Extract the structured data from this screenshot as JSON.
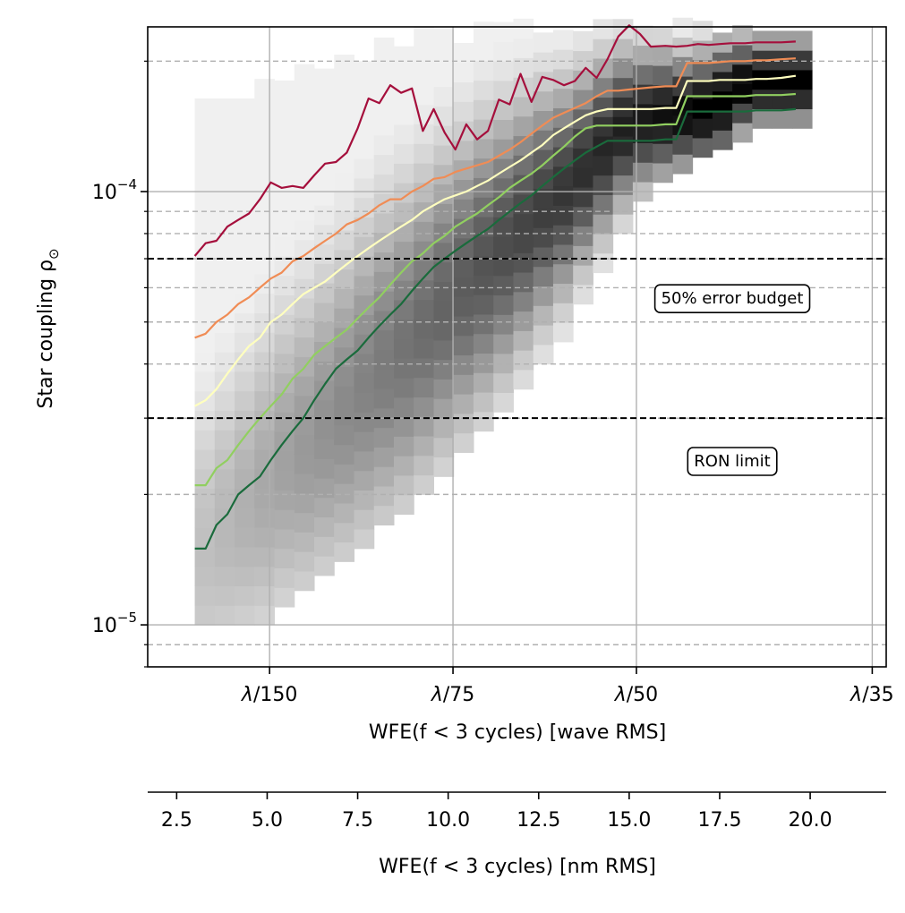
{
  "chart_data": {
    "type": "line",
    "ylabel": "Star coupling ρ",
    "ylabel_subscript": "⊙",
    "yscale": "log",
    "ylim": [
      8e-06,
      0.00024
    ],
    "y_tick_labels": [
      {
        "value": 0.0001,
        "base": "10",
        "exp": "−4"
      },
      {
        "value": 1e-05,
        "base": "10",
        "exp": "−5"
      }
    ],
    "minor_lines": [
      9e-06,
      2e-05,
      3e-05,
      4e-05,
      5e-05,
      6e-05,
      7e-05,
      8e-05,
      9e-05,
      0.0002
    ],
    "xlabel_top": "WFE(f < 3 cycles) [wave RMS]",
    "x_wave_ticks": [
      {
        "label_prefix": "λ",
        "label_suffix": "/150",
        "denominator": 150
      },
      {
        "label_prefix": "λ",
        "label_suffix": "/75",
        "denominator": 75
      },
      {
        "label_prefix": "λ",
        "label_suffix": "/50",
        "denominator": 50
      },
      {
        "label_prefix": "λ",
        "label_suffix": "/35",
        "denominator": 35
      }
    ],
    "xlabel_bottom": "WFE(f < 3 cycles) [nm RMS]",
    "x_nm_ticks": [
      "2.5",
      "5.0",
      "7.5",
      "10.0",
      "12.5",
      "15.0",
      "17.5",
      "20.0"
    ],
    "xlim_nm": [
      1.7,
      22.1
    ],
    "reference_lines": [
      {
        "value": 7e-05,
        "label": "50% error budget",
        "label_y": 5.7e-05
      },
      {
        "value": 3e-05,
        "label": "RON limit",
        "label_y": 2.4e-05
      }
    ],
    "series": [
      {
        "color": "#a50f3c",
        "x": [
          3.0,
          3.3,
          3.6,
          3.9,
          4.2,
          4.5,
          4.8,
          5.1,
          5.4,
          5.7,
          6.0,
          6.3,
          6.6,
          6.9,
          7.2,
          7.5,
          7.8,
          8.1,
          8.4,
          8.7,
          9.0,
          9.3,
          9.6,
          9.9,
          10.2,
          10.5,
          10.8,
          11.1,
          11.4,
          11.7,
          12.0,
          12.3,
          12.6,
          12.9,
          13.2,
          13.5,
          13.8,
          14.1,
          14.4,
          14.7,
          15.0,
          15.3,
          15.6,
          16.0,
          16.3,
          16.6,
          16.9,
          17.2,
          17.5,
          17.8,
          18.2,
          18.5,
          18.8,
          19.2,
          19.6
        ],
        "y": [
          7.1e-05,
          7.6e-05,
          7.7e-05,
          8.3e-05,
          8.6e-05,
          8.9e-05,
          9.6e-05,
          0.000105,
          0.000102,
          0.000103,
          0.000102,
          0.000109,
          0.000116,
          0.000117,
          0.000123,
          0.00014,
          0.000164,
          0.00016,
          0.000176,
          0.000169,
          0.000173,
          0.000138,
          0.000155,
          0.000137,
          0.000125,
          0.000143,
          0.000132,
          0.000138,
          0.000163,
          0.000159,
          0.000187,
          0.000161,
          0.000184,
          0.000181,
          0.000176,
          0.00018,
          0.000193,
          0.000183,
          0.000202,
          0.000228,
          0.000242,
          0.000231,
          0.000216,
          0.000217,
          0.000216,
          0.000217,
          0.000219,
          0.000218,
          0.000219,
          0.00022,
          0.00022,
          0.000221,
          0.000221,
          0.000221,
          0.000222
        ]
      },
      {
        "color": "#f08c55",
        "x": [
          3.0,
          3.3,
          3.6,
          3.9,
          4.2,
          4.5,
          4.8,
          5.1,
          5.4,
          5.7,
          6.0,
          6.3,
          6.6,
          6.9,
          7.2,
          7.5,
          7.8,
          8.1,
          8.4,
          8.7,
          9.0,
          9.3,
          9.6,
          9.9,
          10.2,
          10.5,
          10.8,
          11.1,
          11.4,
          11.7,
          12.0,
          12.3,
          12.6,
          12.9,
          13.2,
          13.5,
          13.8,
          14.1,
          14.4,
          14.7,
          15.0,
          15.3,
          15.6,
          16.0,
          16.3,
          16.6,
          16.9,
          17.2,
          17.5,
          17.8,
          18.2,
          18.5,
          18.8,
          19.2,
          19.6
        ],
        "y": [
          4.6e-05,
          4.7e-05,
          5e-05,
          5.2e-05,
          5.5e-05,
          5.7e-05,
          6e-05,
          6.3e-05,
          6.5e-05,
          6.9e-05,
          7.1e-05,
          7.4e-05,
          7.7e-05,
          8e-05,
          8.4e-05,
          8.6e-05,
          8.9e-05,
          9.3e-05,
          9.6e-05,
          9.6e-05,
          0.0001,
          0.000103,
          0.000107,
          0.000108,
          0.000111,
          0.000113,
          0.000115,
          0.000117,
          0.000121,
          0.000125,
          0.00013,
          0.000136,
          0.000142,
          0.000148,
          0.000152,
          0.000156,
          0.00016,
          0.000166,
          0.000171,
          0.000171,
          0.000172,
          0.000173,
          0.000174,
          0.000175,
          0.000175,
          0.000198,
          0.000198,
          0.000198,
          0.000199,
          0.0002,
          0.0002,
          0.000201,
          0.000201,
          0.000202,
          0.000203
        ]
      },
      {
        "color": "#ffffbf",
        "x": [
          3.0,
          3.3,
          3.6,
          3.9,
          4.2,
          4.5,
          4.8,
          5.1,
          5.4,
          5.7,
          6.0,
          6.3,
          6.6,
          6.9,
          7.2,
          7.5,
          7.8,
          8.1,
          8.4,
          8.7,
          9.0,
          9.3,
          9.6,
          9.9,
          10.2,
          10.5,
          10.8,
          11.1,
          11.4,
          11.7,
          12.0,
          12.3,
          12.6,
          12.9,
          13.2,
          13.5,
          13.8,
          14.1,
          14.4,
          14.7,
          15.0,
          15.3,
          15.6,
          16.0,
          16.3,
          16.6,
          16.9,
          17.2,
          17.5,
          17.8,
          18.2,
          18.5,
          18.8,
          19.2,
          19.6
        ],
        "y": [
          3.2e-05,
          3.3e-05,
          3.5e-05,
          3.8e-05,
          4.1e-05,
          4.4e-05,
          4.6e-05,
          5e-05,
          5.2e-05,
          5.5e-05,
          5.8e-05,
          6e-05,
          6.2e-05,
          6.5e-05,
          6.8e-05,
          7.1e-05,
          7.4e-05,
          7.7e-05,
          8e-05,
          8.3e-05,
          8.6e-05,
          9e-05,
          9.3e-05,
          9.6e-05,
          9.8e-05,
          0.0001,
          0.000103,
          0.000106,
          0.00011,
          0.000114,
          0.000118,
          0.000123,
          0.000128,
          0.000135,
          0.00014,
          0.000145,
          0.00015,
          0.000153,
          0.000155,
          0.000155,
          0.000155,
          0.000155,
          0.000155,
          0.000156,
          0.000156,
          0.00018,
          0.00018,
          0.00018,
          0.000181,
          0.000181,
          0.000181,
          0.000182,
          0.000182,
          0.000183,
          0.000185
        ]
      },
      {
        "color": "#91cf60",
        "x": [
          3.0,
          3.3,
          3.6,
          3.9,
          4.2,
          4.5,
          4.8,
          5.1,
          5.4,
          5.7,
          6.0,
          6.3,
          6.6,
          6.9,
          7.2,
          7.5,
          7.8,
          8.1,
          8.4,
          8.7,
          9.0,
          9.3,
          9.6,
          9.9,
          10.2,
          10.5,
          10.8,
          11.1,
          11.4,
          11.7,
          12.0,
          12.3,
          12.6,
          12.9,
          13.2,
          13.5,
          13.8,
          14.1,
          14.4,
          14.7,
          15.0,
          15.3,
          15.6,
          16.0,
          16.3,
          16.6,
          16.9,
          17.2,
          17.5,
          17.8,
          18.2,
          18.5,
          18.8,
          19.2,
          19.6
        ],
        "y": [
          2.1e-05,
          2.1e-05,
          2.3e-05,
          2.4e-05,
          2.6e-05,
          2.8e-05,
          3e-05,
          3.2e-05,
          3.4e-05,
          3.7e-05,
          3.9e-05,
          4.2e-05,
          4.4e-05,
          4.6e-05,
          4.8e-05,
          5.1e-05,
          5.4e-05,
          5.7e-05,
          6.1e-05,
          6.5e-05,
          6.9e-05,
          7.2e-05,
          7.6e-05,
          7.9e-05,
          8.3e-05,
          8.6e-05,
          8.9e-05,
          9.3e-05,
          9.7e-05,
          0.000102,
          0.000106,
          0.00011,
          0.000115,
          0.000121,
          0.000127,
          0.000134,
          0.00014,
          0.000142,
          0.000142,
          0.000142,
          0.000142,
          0.000142,
          0.000142,
          0.000143,
          0.000143,
          0.000166,
          0.000166,
          0.000166,
          0.000166,
          0.000166,
          0.000166,
          0.000167,
          0.000167,
          0.000167,
          0.000168
        ]
      },
      {
        "color": "#1a6b3c",
        "x": [
          3.0,
          3.3,
          3.6,
          3.9,
          4.2,
          4.5,
          4.8,
          5.1,
          5.4,
          5.7,
          6.0,
          6.3,
          6.6,
          6.9,
          7.2,
          7.5,
          7.8,
          8.1,
          8.4,
          8.7,
          9.0,
          9.3,
          9.6,
          9.9,
          10.2,
          10.5,
          10.8,
          11.1,
          11.4,
          11.7,
          12.0,
          12.3,
          12.6,
          12.9,
          13.2,
          13.5,
          13.8,
          14.1,
          14.4,
          14.7,
          15.0,
          15.3,
          15.6,
          16.0,
          16.3,
          16.6,
          16.9,
          17.2,
          17.5,
          17.8,
          18.2,
          18.5,
          18.8,
          19.2,
          19.6
        ],
        "y": [
          1.5e-05,
          1.5e-05,
          1.7e-05,
          1.8e-05,
          2e-05,
          2.1e-05,
          2.2e-05,
          2.4e-05,
          2.6e-05,
          2.8e-05,
          3e-05,
          3.3e-05,
          3.6e-05,
          3.9e-05,
          4.1e-05,
          4.3e-05,
          4.6e-05,
          4.9e-05,
          5.2e-05,
          5.5e-05,
          5.9e-05,
          6.3e-05,
          6.7e-05,
          7e-05,
          7.3e-05,
          7.6e-05,
          7.9e-05,
          8.2e-05,
          8.6e-05,
          9e-05,
          9.4e-05,
          9.8e-05,
          0.000103,
          0.000108,
          0.000113,
          0.000118,
          0.000123,
          0.000127,
          0.000131,
          0.000131,
          0.000131,
          0.000131,
          0.000131,
          0.000132,
          0.000132,
          0.000153,
          0.000153,
          0.000153,
          0.000153,
          0.000153,
          0.000153,
          0.000154,
          0.000154,
          0.000154,
          0.000155
        ]
      }
    ],
    "heatmap": {
      "colormap": "greys",
      "x_start": 3.0,
      "x_bin": 0.55,
      "columns": [
        {
          "lo": 1e-05,
          "hi": 0.00015,
          "peak": 1.5e-05,
          "w": 0.35
        },
        {
          "lo": 1e-05,
          "hi": 0.00016,
          "peak": 1.7e-05,
          "w": 0.35
        },
        {
          "lo": 1e-05,
          "hi": 0.00016,
          "peak": 1.9e-05,
          "w": 0.35
        },
        {
          "lo": 1e-05,
          "hi": 0.00017,
          "peak": 2.1e-05,
          "w": 0.35
        },
        {
          "lo": 1.1e-05,
          "hi": 0.00018,
          "peak": 2.4e-05,
          "w": 0.35
        },
        {
          "lo": 1.2e-05,
          "hi": 0.00018,
          "peak": 2.6e-05,
          "w": 0.35
        },
        {
          "lo": 1.3e-05,
          "hi": 0.00019,
          "peak": 2.9e-05,
          "w": 0.35
        },
        {
          "lo": 1.4e-05,
          "hi": 0.0002,
          "peak": 3.2e-05,
          "w": 0.35
        },
        {
          "lo": 1.5e-05,
          "hi": 0.0002,
          "peak": 3.6e-05,
          "w": 0.35
        },
        {
          "lo": 1.7e-05,
          "hi": 0.00021,
          "peak": 4e-05,
          "w": 0.35
        },
        {
          "lo": 1.8e-05,
          "hi": 0.00021,
          "peak": 4.4e-05,
          "w": 0.34
        },
        {
          "lo": 2e-05,
          "hi": 0.00022,
          "peak": 4.9e-05,
          "w": 0.33
        },
        {
          "lo": 2.2e-05,
          "hi": 0.00022,
          "peak": 5.5e-05,
          "w": 0.32
        },
        {
          "lo": 2.5e-05,
          "hi": 0.00022,
          "peak": 6.1e-05,
          "w": 0.31
        },
        {
          "lo": 2.8e-05,
          "hi": 0.00023,
          "peak": 6.8e-05,
          "w": 0.3
        },
        {
          "lo": 3.1e-05,
          "hi": 0.00023,
          "peak": 7.5e-05,
          "w": 0.28
        },
        {
          "lo": 3.5e-05,
          "hi": 0.00023,
          "peak": 8.3e-05,
          "w": 0.26
        },
        {
          "lo": 4e-05,
          "hi": 0.00023,
          "peak": 9.2e-05,
          "w": 0.24
        },
        {
          "lo": 4.5e-05,
          "hi": 0.00023,
          "peak": 0.0001,
          "w": 0.22
        },
        {
          "lo": 5.5e-05,
          "hi": 0.00023,
          "peak": 0.000112,
          "w": 0.2
        },
        {
          "lo": 6.5e-05,
          "hi": 0.00023,
          "peak": 0.000126,
          "w": 0.18
        },
        {
          "lo": 8e-05,
          "hi": 0.00023,
          "peak": 0.00014,
          "w": 0.16
        },
        {
          "lo": 9.5e-05,
          "hi": 0.00023,
          "peak": 0.000147,
          "w": 0.14
        },
        {
          "lo": 0.000105,
          "hi": 0.00023,
          "peak": 0.00015,
          "w": 0.13
        },
        {
          "lo": 0.00011,
          "hi": 0.00023,
          "peak": 0.000152,
          "w": 0.12
        },
        {
          "lo": 0.00012,
          "hi": 0.00023,
          "peak": 0.000155,
          "w": 0.12
        },
        {
          "lo": 0.000125,
          "hi": 0.00023,
          "peak": 0.000162,
          "w": 0.12
        },
        {
          "lo": 0.00013,
          "hi": 0.00023,
          "peak": 0.000175,
          "w": 0.1
        },
        {
          "lo": 0.00014,
          "hi": 0.00023,
          "peak": 0.00018,
          "w": 0.09
        },
        {
          "lo": 0.00014,
          "hi": 0.00023,
          "peak": 0.00018,
          "w": 0.09
        },
        {
          "lo": 0.00014,
          "hi": 0.00023,
          "peak": 0.00018,
          "w": 0.09
        }
      ]
    }
  }
}
